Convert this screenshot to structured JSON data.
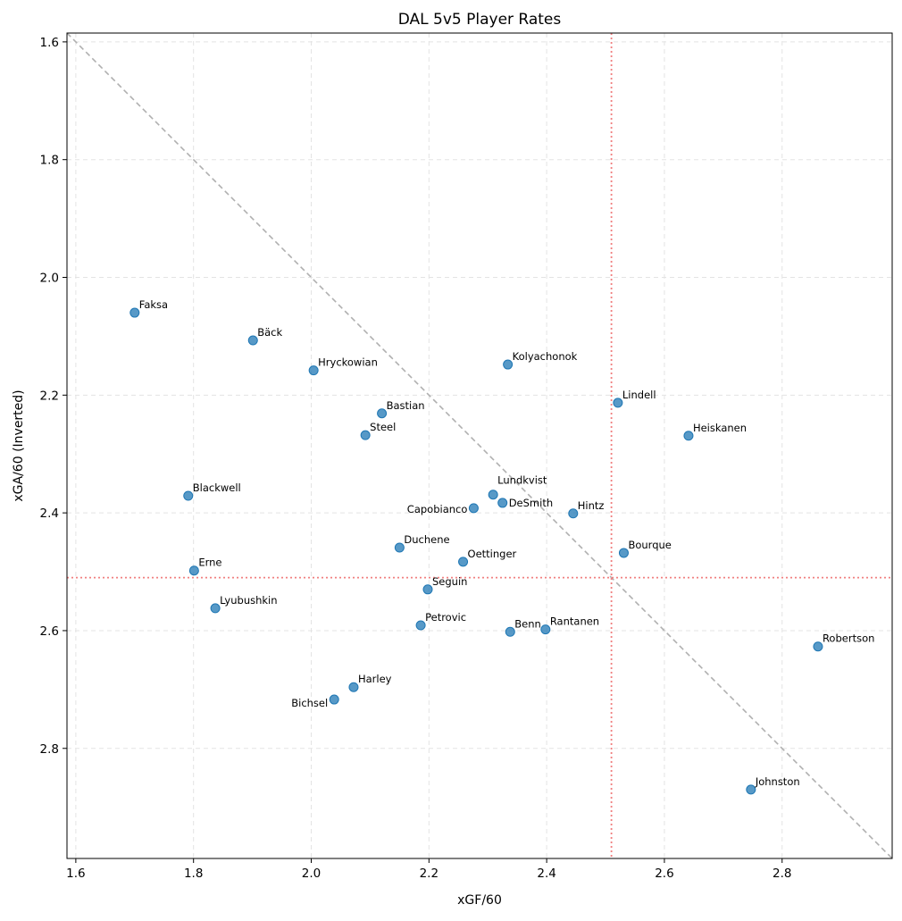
{
  "chart_data": {
    "type": "scatter",
    "title": "DAL 5v5 Player Rates",
    "xlabel": "xGF/60",
    "ylabel": "xGA/60 (Inverted)",
    "xlim": [
      1.585,
      2.987
    ],
    "ylim": [
      2.987,
      1.585
    ],
    "y_inverted": true,
    "grid": true,
    "xticks": [
      "1.6",
      "1.8",
      "2.0",
      "2.2",
      "2.4",
      "2.6",
      "2.8"
    ],
    "yticks": [
      "1.6",
      "1.8",
      "2.0",
      "2.2",
      "2.4",
      "2.6",
      "2.8"
    ],
    "point_color": "#1f77b4",
    "reference_lines": {
      "diagonal": {
        "kind": "y=x",
        "color": "#b0b0b0",
        "style": "dashed"
      },
      "mean_x": {
        "value": 2.51,
        "color": "#f08080",
        "style": "dotted"
      },
      "mean_y": {
        "value": 2.51,
        "color": "#f08080",
        "style": "dotted"
      }
    },
    "points": [
      {
        "label": "Faksa",
        "x": 1.7,
        "y": 2.06
      },
      {
        "label": "Bäck",
        "x": 1.901,
        "y": 2.107
      },
      {
        "label": "Hryckowian",
        "x": 2.004,
        "y": 2.158
      },
      {
        "label": "Kolyachonok",
        "x": 2.334,
        "y": 2.148
      },
      {
        "label": "Lindell",
        "x": 2.521,
        "y": 2.213
      },
      {
        "label": "Heiskanen",
        "x": 2.641,
        "y": 2.269
      },
      {
        "label": "Bastian",
        "x": 2.12,
        "y": 2.231
      },
      {
        "label": "Steel",
        "x": 2.092,
        "y": 2.268
      },
      {
        "label": "Blackwell",
        "x": 1.791,
        "y": 2.371
      },
      {
        "label": "Lundkvist",
        "x": 2.309,
        "y": 2.369
      },
      {
        "label": "DeSmith",
        "x": 2.325,
        "y": 2.383
      },
      {
        "label": "Capobianco",
        "x": 2.276,
        "y": 2.392
      },
      {
        "label": "Hintz",
        "x": 2.445,
        "y": 2.401
      },
      {
        "label": "Duchene",
        "x": 2.15,
        "y": 2.459
      },
      {
        "label": "Bourque",
        "x": 2.531,
        "y": 2.468
      },
      {
        "label": "Oettinger",
        "x": 2.258,
        "y": 2.483
      },
      {
        "label": "Erne",
        "x": 1.801,
        "y": 2.498
      },
      {
        "label": "Seguin",
        "x": 2.198,
        "y": 2.53
      },
      {
        "label": "Lyubushkin",
        "x": 1.837,
        "y": 2.562
      },
      {
        "label": "Petrovic",
        "x": 2.186,
        "y": 2.591
      },
      {
        "label": "Benn",
        "x": 2.338,
        "y": 2.602
      },
      {
        "label": "Rantanen",
        "x": 2.398,
        "y": 2.598
      },
      {
        "label": "Robertson",
        "x": 2.861,
        "y": 2.627
      },
      {
        "label": "Harley",
        "x": 2.072,
        "y": 2.696
      },
      {
        "label": "Bichsel",
        "x": 2.039,
        "y": 2.717
      },
      {
        "label": "Johnston",
        "x": 2.747,
        "y": 2.87
      }
    ]
  }
}
